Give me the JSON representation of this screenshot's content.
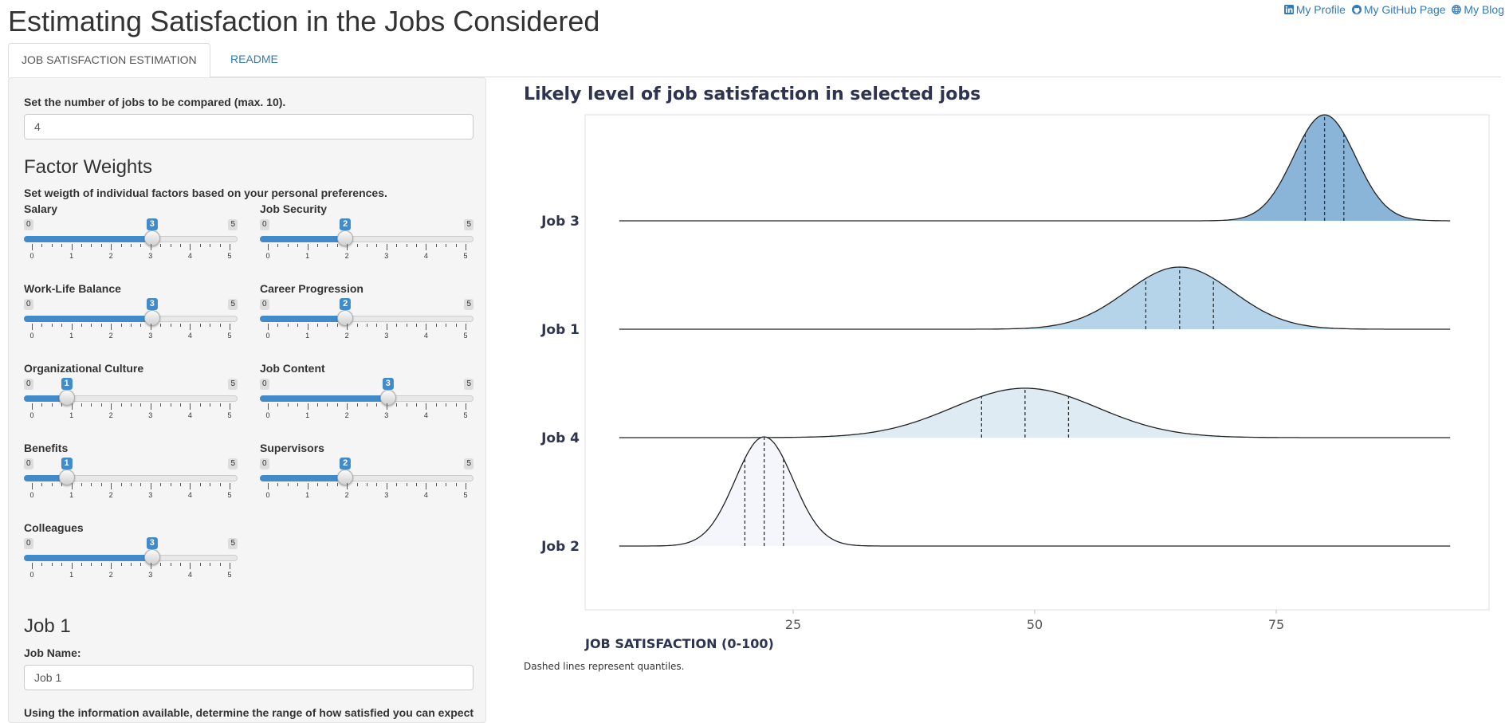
{
  "app": {
    "title": "Estimating Satisfaction in the Jobs Considered"
  },
  "header_links": [
    {
      "label": "My Profile",
      "icon": "linkedin-icon"
    },
    {
      "label": "My GitHub Page",
      "icon": "github-icon"
    },
    {
      "label": "My Blog",
      "icon": "globe-icon"
    }
  ],
  "tabs": [
    {
      "label": "JOB SATISFACTION ESTIMATION",
      "active": true
    },
    {
      "label": "README",
      "active": false
    }
  ],
  "sidebar": {
    "num_jobs_label": "Set the number of jobs to be compared (max. 10).",
    "num_jobs_value": "4",
    "factor_weights_heading": "Factor Weights",
    "factor_weights_help": "Set weigth of individual factors based on your personal preferences.",
    "sliders": [
      {
        "label": "Salary",
        "value": 3,
        "min": 0,
        "max": 5
      },
      {
        "label": "Job Security",
        "value": 2,
        "min": 0,
        "max": 5
      },
      {
        "label": "Work-Life Balance",
        "value": 3,
        "min": 0,
        "max": 5
      },
      {
        "label": "Career Progression",
        "value": 2,
        "min": 0,
        "max": 5
      },
      {
        "label": "Organizational Culture",
        "value": 1,
        "min": 0,
        "max": 5
      },
      {
        "label": "Job Content",
        "value": 3,
        "min": 0,
        "max": 5
      },
      {
        "label": "Benefits",
        "value": 1,
        "min": 0,
        "max": 5
      },
      {
        "label": "Supervisors",
        "value": 2,
        "min": 0,
        "max": 5
      },
      {
        "label": "Colleagues",
        "value": 3,
        "min": 0,
        "max": 5
      }
    ],
    "job1_heading": "Job 1",
    "job_name_label": "Job Name:",
    "job_name_value": "Job 1",
    "range_help": "Using the information available, determine the range of how satisfied you can expect"
  },
  "colors": {
    "accent": "#428bca",
    "link": "#337ab7",
    "job3_fill": "#8ab4d8",
    "job1_fill": "#b5d4ea",
    "job4_fill": "#deebf3",
    "job2_fill": "#f4f6fb"
  },
  "chart": {
    "title": "Likely level of job satisfaction in selected jobs",
    "caption": "Dashed lines represent quantiles."
  },
  "chart_data": {
    "type": "ridgeline",
    "title": "Likely level of job satisfaction in selected jobs",
    "xlabel": "JOB SATISFACTION (0-100)",
    "ylabel": "",
    "xlim": [
      0,
      100
    ],
    "xticks": [
      25,
      50,
      75
    ],
    "grid": false,
    "caption": "Dashed lines represent quantiles.",
    "series": [
      {
        "name": "Job 3",
        "mean": 80,
        "sd": 3.2,
        "range": [
          7,
          93
        ],
        "quantiles": [
          78,
          80,
          82
        ],
        "fill": "#8ab4d8"
      },
      {
        "name": "Job 1",
        "mean": 65,
        "sd": 5.5,
        "range": [
          7,
          93
        ],
        "quantiles": [
          61.5,
          65,
          68.5
        ],
        "fill": "#b5d4ea"
      },
      {
        "name": "Job 4",
        "mean": 49,
        "sd": 7.5,
        "range": [
          7,
          93
        ],
        "quantiles": [
          44.5,
          49,
          53.5
        ],
        "fill": "#deebf3"
      },
      {
        "name": "Job 2",
        "mean": 22,
        "sd": 3.0,
        "range": [
          7,
          93
        ],
        "quantiles": [
          20,
          22,
          24
        ],
        "fill": "#f4f6fb"
      }
    ]
  }
}
